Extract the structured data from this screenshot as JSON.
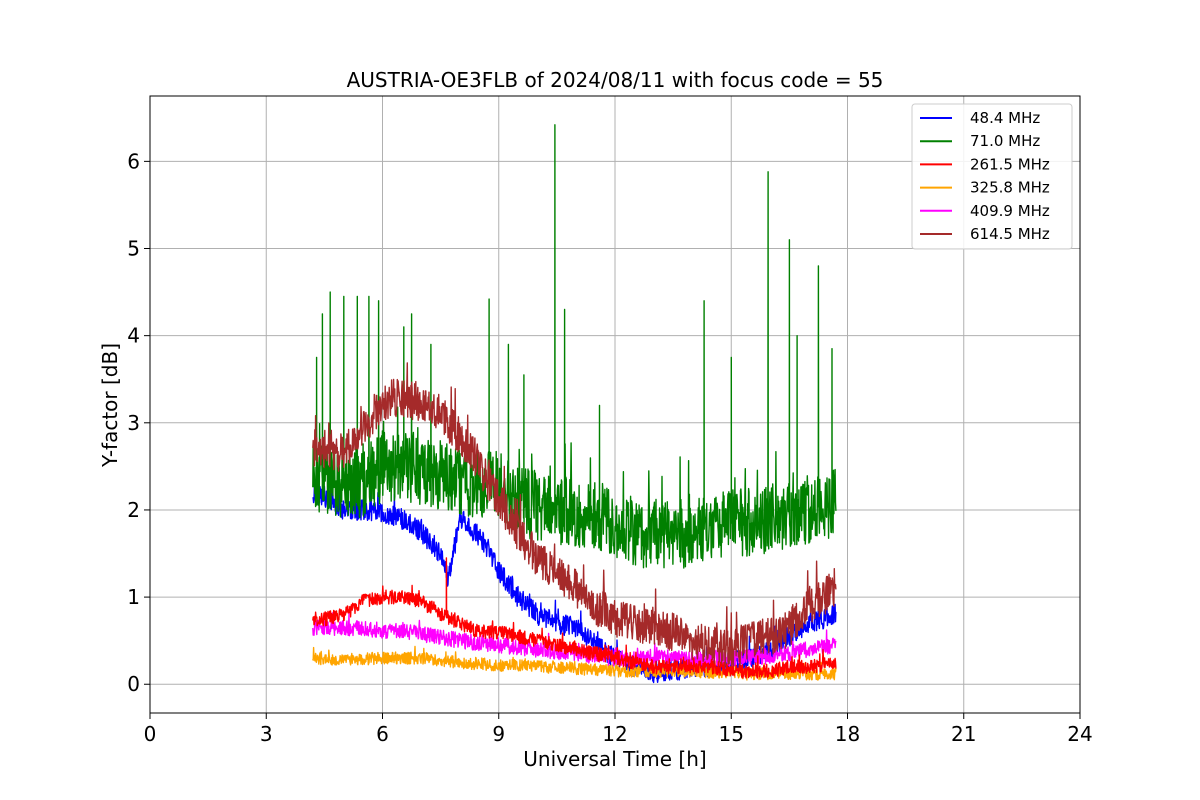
{
  "chart_data": {
    "type": "line",
    "title": "AUSTRIA-OE3FLB of 2024/08/11 with focus code = 55",
    "xlabel": "Universal Time [h]",
    "ylabel": "Y-factor [dB]",
    "xlim": [
      0,
      24
    ],
    "ylim": [
      -0.33,
      6.75
    ],
    "xticks": [
      0,
      3,
      6,
      9,
      12,
      15,
      18,
      21,
      24
    ],
    "xtick_labels": [
      "0",
      "3",
      "6",
      "9",
      "12",
      "15",
      "18",
      "21",
      "24"
    ],
    "yticks": [
      0,
      1,
      2,
      3,
      4,
      5,
      6
    ],
    "ytick_labels": [
      "0",
      "1",
      "2",
      "3",
      "4",
      "5",
      "6"
    ],
    "grid": true,
    "legend_position": "top-right",
    "series": [
      {
        "name": " 48.4 MHz",
        "color": "#0000ff",
        "x": [
          4.2,
          4.5,
          5,
          5.5,
          6,
          6.5,
          7,
          7.5,
          7.7,
          8,
          8.5,
          9,
          9.5,
          10,
          10.5,
          11,
          11.5,
          12,
          12.5,
          13,
          13.5,
          14,
          14.5,
          15,
          15.5,
          16,
          16.5,
          17,
          17.7
        ],
        "values": [
          2.2,
          2.15,
          2.0,
          2.0,
          1.95,
          1.9,
          1.75,
          1.5,
          1.2,
          1.9,
          1.7,
          1.3,
          1.0,
          0.8,
          0.7,
          0.65,
          0.45,
          0.3,
          0.2,
          0.12,
          0.15,
          0.2,
          0.2,
          0.25,
          0.3,
          0.4,
          0.55,
          0.7,
          0.8
        ],
        "amplitude": 0.12
      },
      {
        "name": " 71.0 MHz",
        "color": "#008000",
        "x": [
          4.2,
          4.5,
          5,
          5.5,
          6,
          6.5,
          7,
          7.5,
          8,
          8.5,
          9,
          9.5,
          10,
          10.5,
          11,
          11.5,
          12,
          12.5,
          13,
          13.5,
          14,
          14.5,
          15,
          15.5,
          16,
          16.5,
          17,
          17.7
        ],
        "values": [
          2.4,
          2.35,
          2.3,
          2.3,
          2.5,
          2.5,
          2.45,
          2.4,
          2.35,
          2.3,
          2.3,
          2.1,
          2.05,
          2.0,
          1.95,
          1.95,
          1.85,
          1.7,
          1.75,
          1.7,
          1.75,
          1.8,
          1.85,
          1.85,
          1.9,
          1.95,
          2.0,
          2.1
        ],
        "amplitude": 0.4,
        "spikes": [
          {
            "x": 4.3,
            "y": 3.75
          },
          {
            "x": 4.45,
            "y": 4.25
          },
          {
            "x": 4.65,
            "y": 4.5
          },
          {
            "x": 5.0,
            "y": 4.45
          },
          {
            "x": 5.35,
            "y": 4.45
          },
          {
            "x": 5.65,
            "y": 4.45
          },
          {
            "x": 5.9,
            "y": 4.4
          },
          {
            "x": 6.55,
            "y": 4.1
          },
          {
            "x": 6.75,
            "y": 4.25
          },
          {
            "x": 7.25,
            "y": 3.9
          },
          {
            "x": 8.75,
            "y": 4.42
          },
          {
            "x": 9.25,
            "y": 3.9
          },
          {
            "x": 9.65,
            "y": 3.55
          },
          {
            "x": 10.45,
            "y": 6.42
          },
          {
            "x": 10.7,
            "y": 4.3
          },
          {
            "x": 11.6,
            "y": 3.2
          },
          {
            "x": 14.3,
            "y": 4.4
          },
          {
            "x": 15.0,
            "y": 3.75
          },
          {
            "x": 15.95,
            "y": 5.88
          },
          {
            "x": 16.5,
            "y": 5.1
          },
          {
            "x": 16.7,
            "y": 4.0
          },
          {
            "x": 17.25,
            "y": 4.8
          },
          {
            "x": 17.6,
            "y": 3.85
          }
        ]
      },
      {
        "name": "261.5 MHz",
        "color": "#ff0000",
        "x": [
          4.2,
          4.5,
          5,
          5.5,
          6,
          6.5,
          7,
          7.5,
          8,
          8.5,
          9,
          9.5,
          10,
          10.5,
          11,
          11.5,
          12,
          12.5,
          13,
          13.5,
          14,
          14.5,
          15,
          15.5,
          16,
          16.5,
          17,
          17.7
        ],
        "values": [
          0.75,
          0.75,
          0.8,
          0.95,
          1.0,
          1.0,
          0.95,
          0.8,
          0.7,
          0.6,
          0.6,
          0.55,
          0.5,
          0.45,
          0.4,
          0.35,
          0.3,
          0.25,
          0.2,
          0.2,
          0.2,
          0.2,
          0.15,
          0.15,
          0.15,
          0.2,
          0.2,
          0.25
        ],
        "amplitude": 0.08,
        "spikes": [
          {
            "x": 7.65,
            "y": 1.45
          }
        ]
      },
      {
        "name": "325.8 MHz",
        "color": "#ffa500",
        "x": [
          4.2,
          5,
          6,
          7,
          8,
          9,
          10,
          11,
          12,
          13,
          14,
          15,
          16,
          17,
          17.7
        ],
        "values": [
          0.3,
          0.28,
          0.3,
          0.3,
          0.25,
          0.22,
          0.2,
          0.18,
          0.15,
          0.15,
          0.15,
          0.12,
          0.12,
          0.12,
          0.12
        ],
        "amplitude": 0.07
      },
      {
        "name": "409.9 MHz",
        "color": "#ff00ff",
        "x": [
          4.2,
          5,
          6,
          7,
          8,
          9,
          10,
          11,
          12,
          13,
          14,
          15,
          16,
          17,
          17.7
        ],
        "values": [
          0.65,
          0.65,
          0.62,
          0.58,
          0.5,
          0.45,
          0.4,
          0.35,
          0.3,
          0.3,
          0.3,
          0.3,
          0.32,
          0.4,
          0.45
        ],
        "amplitude": 0.09
      },
      {
        "name": "614.5 MHz",
        "color": "#a52a2a",
        "x": [
          4.2,
          4.5,
          5,
          5.5,
          6,
          6.5,
          7,
          7.5,
          8,
          8.5,
          9,
          9.5,
          10,
          10.5,
          11,
          11.5,
          12,
          12.5,
          13,
          13.5,
          14,
          14.5,
          15,
          15.5,
          16,
          16.5,
          17,
          17.7
        ],
        "values": [
          2.7,
          2.7,
          2.65,
          2.9,
          3.25,
          3.3,
          3.2,
          3.1,
          2.85,
          2.5,
          2.1,
          1.75,
          1.45,
          1.25,
          1.1,
          0.9,
          0.75,
          0.7,
          0.65,
          0.6,
          0.5,
          0.45,
          0.4,
          0.5,
          0.55,
          0.65,
          0.9,
          1.1
        ],
        "amplitude": 0.22
      }
    ]
  }
}
